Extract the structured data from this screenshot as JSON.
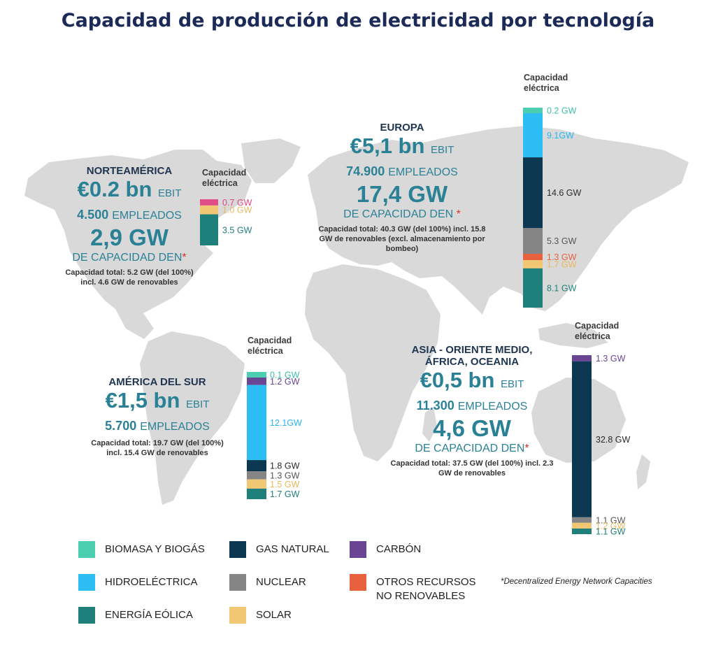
{
  "title": "Capacidad de producción de electricidad por tecnología",
  "colors": {
    "biomasa": "#4ccfb1",
    "hidro": "#2bbdf3",
    "eolica": "#1f7f7a",
    "gas": "#0b3850",
    "nuclear": "#858585",
    "solar": "#f2c774",
    "carbon": "#6a4593",
    "otros": "#e8613f",
    "other_pink": "#e04e8a",
    "map": "#d8d8d8",
    "accent_text": "#2a8196"
  },
  "capacity_label": "Capacidad eléctrica",
  "regions": {
    "na": {
      "name": "NORTEAMÉRICA",
      "ebit": "€0.2 bn",
      "ebit_suffix": "EBIT",
      "employees": "4.500",
      "employees_suffix": "EMPLEADOS",
      "capacity": "2,9 GW",
      "capacity_suffix": "DE CAPACIDAD DEN",
      "star": "*",
      "note": "Capacidad total: 5.2 GW (del 100%) incl. 4.6 GW de renovables"
    },
    "eu": {
      "name": "EUROPA",
      "ebit": "€5,1 bn",
      "ebit_suffix": "EBIT",
      "employees": "74.900",
      "employees_suffix": "EMPLEADOS",
      "capacity": "17,4 GW",
      "capacity_suffix": "DE CAPACIDAD DEN",
      "star": "*",
      "note": "Capacidad total: 40.3 GW (del 100%) incl. 15.8 GW de renovables (excl. almacenamiento por bombeo)"
    },
    "sa": {
      "name": "AMÉRICA DEL SUR",
      "ebit": "€1,5 bn",
      "ebit_suffix": "EBIT",
      "employees": "5.700",
      "employees_suffix": "EMPLEADOS",
      "note": "Capacidad total: 19.7 GW (del 100%) incl. 15.4 GW de renovables"
    },
    "as": {
      "name": "ASIA - ORIENTE MEDIO, ÁFRICA, OCEANIA",
      "ebit": "€0,5 bn",
      "ebit_suffix": "EBIT",
      "employees": "11.300",
      "employees_suffix": "EMPLEADOS",
      "capacity": "4,6 GW",
      "capacity_suffix": "DE CAPACIDAD DEN",
      "star": "*",
      "note": "Capacidad total: 37.5 GW (del 100%) incl. 2.3 GW de renovables"
    }
  },
  "chart_data": [
    {
      "type": "bar",
      "region": "na",
      "segments": [
        {
          "label": "0.7 GW",
          "value": 0.7,
          "tech": "other_pink"
        },
        {
          "label": "1.0 GW",
          "value": 1.0,
          "tech": "solar"
        },
        {
          "label": "3.5 GW",
          "value": 3.5,
          "tech": "eolica"
        }
      ]
    },
    {
      "type": "bar",
      "region": "eu",
      "segments": [
        {
          "label": "0.2 GW",
          "value": 0.2,
          "tech": "biomasa"
        },
        {
          "label": "9.1GW",
          "value": 9.1,
          "tech": "hidro"
        },
        {
          "label": "14.6 GW",
          "value": 14.6,
          "tech": "gas"
        },
        {
          "label": "5.3 GW",
          "value": 5.3,
          "tech": "nuclear"
        },
        {
          "label": "1.3 GW",
          "value": 1.3,
          "tech": "otros"
        },
        {
          "label": "1.7 GW",
          "value": 1.7,
          "tech": "solar"
        },
        {
          "label": "8.1 GW",
          "value": 8.1,
          "tech": "eolica"
        }
      ]
    },
    {
      "type": "bar",
      "region": "sa",
      "segments": [
        {
          "label": "0.1 GW",
          "value": 0.1,
          "tech": "biomasa"
        },
        {
          "label": "1.2 GW",
          "value": 1.2,
          "tech": "carbon"
        },
        {
          "label": "12.1GW",
          "value": 12.1,
          "tech": "hidro"
        },
        {
          "label": "1.8 GW",
          "value": 1.8,
          "tech": "gas"
        },
        {
          "label": "1.3 GW",
          "value": 1.3,
          "tech": "nuclear"
        },
        {
          "label": "1.5 GW",
          "value": 1.5,
          "tech": "solar"
        },
        {
          "label": "1.7 GW",
          "value": 1.7,
          "tech": "eolica"
        }
      ]
    },
    {
      "type": "bar",
      "region": "as",
      "segments": [
        {
          "label": "1.3 GW",
          "value": 1.3,
          "tech": "carbon"
        },
        {
          "label": "32.8 GW",
          "value": 32.8,
          "tech": "gas"
        },
        {
          "label": "1.1 GW",
          "value": 1.1,
          "tech": "nuclear"
        },
        {
          "label": "1.2 GW",
          "value": 1.2,
          "tech": "solar"
        },
        {
          "label": "1.1 GW",
          "value": 1.1,
          "tech": "eolica"
        }
      ]
    }
  ],
  "legend": [
    {
      "label": "BIOMASA Y BIOGÁS",
      "tech": "biomasa"
    },
    {
      "label": "GAS NATURAL",
      "tech": "gas"
    },
    {
      "label": "CARBÓN",
      "tech": "carbon"
    },
    {
      "label": "HIDROELÉCTRICA",
      "tech": "hidro"
    },
    {
      "label": "NUCLEAR",
      "tech": "nuclear"
    },
    {
      "label": "OTROS RECURSOS NO RENOVABLES",
      "tech": "otros"
    },
    {
      "label": "ENERGÍA EÓLICA",
      "tech": "eolica"
    },
    {
      "label": "SOLAR",
      "tech": "solar"
    }
  ],
  "footnote": "*Decentralized Energy Network Capacities"
}
